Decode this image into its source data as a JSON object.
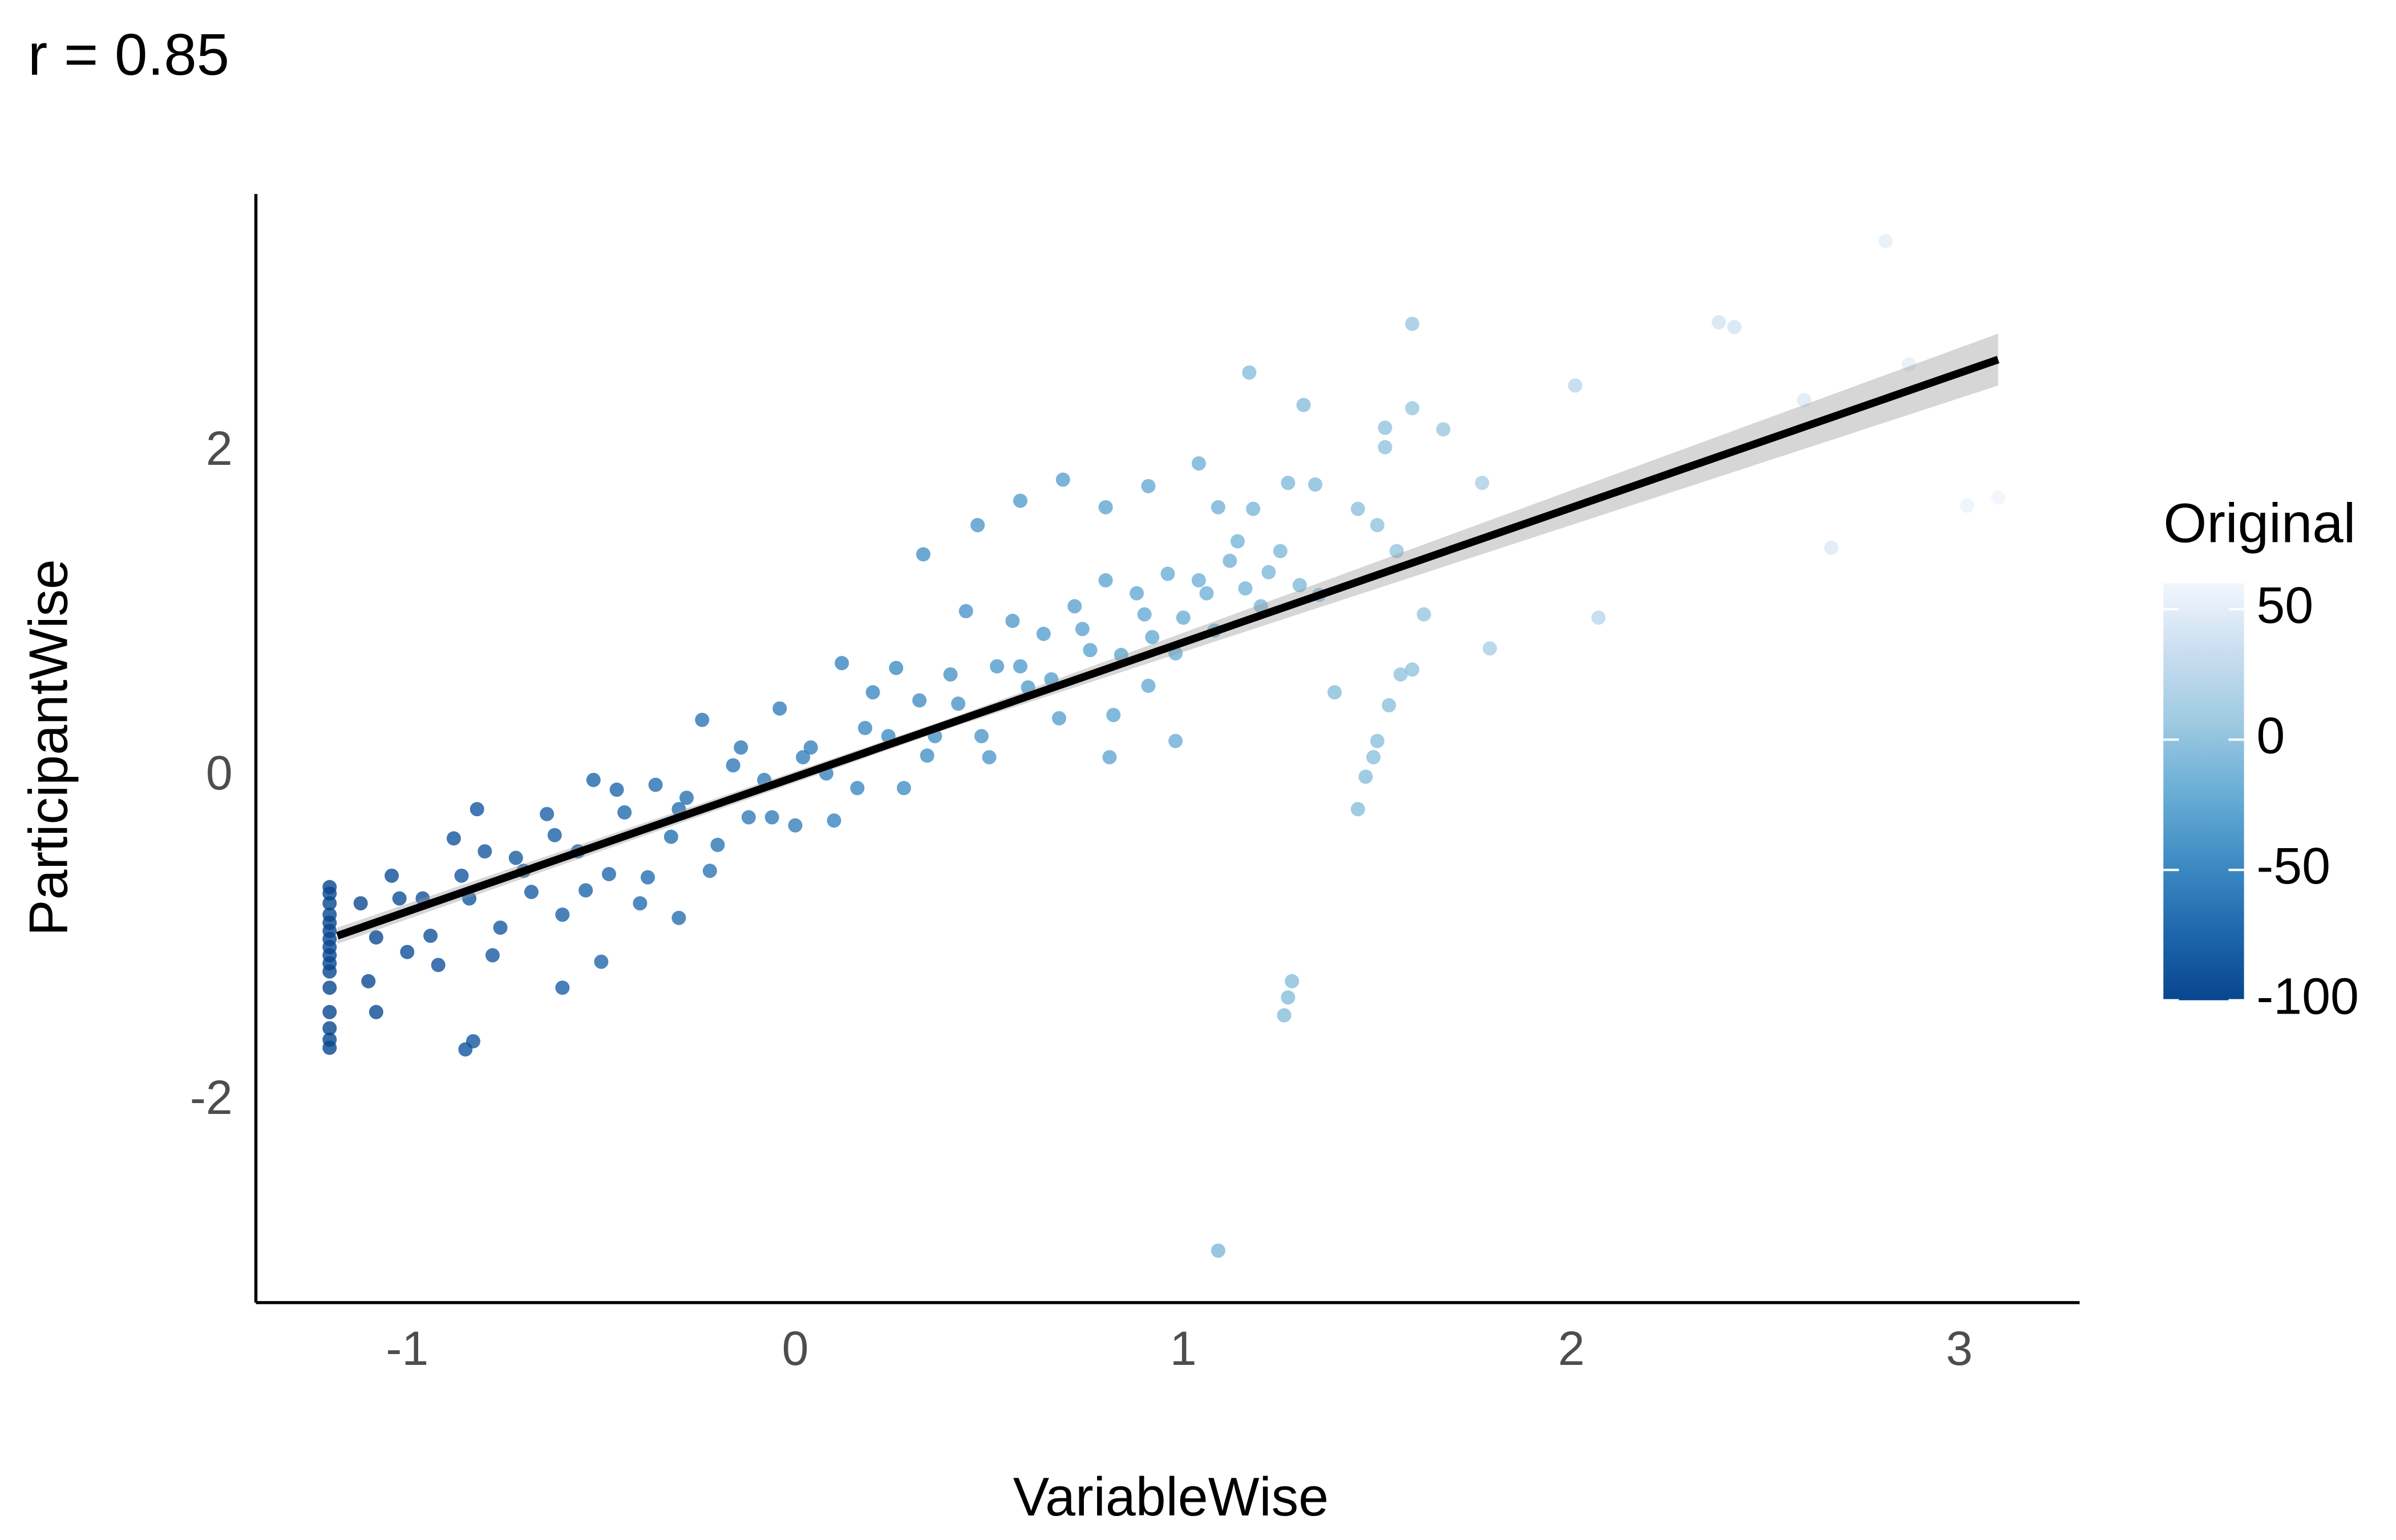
{
  "chart_data": {
    "type": "scatter",
    "title": "r = 0.85",
    "x_label": "VariableWise",
    "y_label": "ParticipantWise",
    "color_label": "Original",
    "xlim": [
      -1.39,
      3.31
    ],
    "ylim": [
      -3.24,
      3.59
    ],
    "xticks": [
      -1,
      0,
      1,
      2,
      3
    ],
    "yticks": [
      -2,
      0,
      2
    ],
    "colorlim": [
      -100,
      60
    ],
    "colorticks": [
      -100,
      -50,
      0,
      50
    ],
    "colors": [
      "#08468f",
      "#1f68ad",
      "#3f8cc4",
      "#6aaed6",
      "#9ecae1",
      "#c9ddf0",
      "#f2f7fd"
    ],
    "x": [
      -1.2,
      -1.2,
      -1.2,
      -1.2,
      -1.2,
      -1.2,
      -1.2,
      -1.2,
      -1.2,
      -1.2,
      -1.2,
      -1.2,
      -1.2,
      -1.2,
      -1.2,
      -1.2,
      -1.12,
      -1.08,
      -1.04,
      -1.0,
      -0.96,
      -0.92,
      -0.88,
      -0.84,
      -0.8,
      -0.76,
      -0.72,
      -0.68,
      -0.64,
      -0.6,
      -0.56,
      -0.52,
      -0.48,
      -0.44,
      -0.4,
      -0.36,
      -0.32,
      -0.28,
      -0.24,
      -0.2,
      -0.16,
      -0.12,
      -0.08,
      -0.04,
      0.0,
      0.04,
      0.08,
      0.12,
      0.16,
      0.2,
      0.24,
      0.28,
      0.32,
      0.36,
      0.4,
      0.44,
      0.48,
      0.52,
      0.56,
      0.6,
      0.64,
      0.68,
      0.72,
      0.76,
      0.8,
      0.84,
      0.88,
      0.92,
      0.96,
      1.0,
      1.04,
      1.08,
      1.12,
      1.16,
      1.2,
      1.25,
      1.3,
      1.35,
      1.45,
      1.5,
      1.55,
      1.62,
      -1.1,
      -1.02,
      -0.94,
      -0.86,
      -0.78,
      -0.7,
      -0.62,
      -0.54,
      -0.46,
      -0.38,
      -0.3,
      -0.22,
      -0.14,
      -0.06,
      0.02,
      0.1,
      0.18,
      0.26,
      0.34,
      0.42,
      0.5,
      0.58,
      0.66,
      0.74,
      0.82,
      0.9,
      0.98,
      1.06,
      1.14,
      1.22,
      1.09,
      1.28,
      1.27,
      1.26,
      2.81,
      2.38,
      2.42,
      2.6,
      2.87,
      3.02,
      3.1,
      2.67,
      2.07,
      2.01,
      1.79,
      1.77,
      1.59,
      1.17,
      1.31,
      1.52,
      1.67,
      1.59,
      1.45,
      1.47,
      1.49,
      1.5,
      1.53,
      1.56,
      1.59,
      1.39,
      0.98,
      0.91,
      0.81,
      0.69,
      0.58,
      0.47,
      0.33,
      1.04,
      0.91,
      0.8,
      1.27,
      1.34,
      1.09,
      1.18,
      1.52,
      -0.83,
      -0.85,
      -0.6,
      -0.5,
      -1.08,
      -0.3,
      -0.82
    ],
    "values": [
      -0.68,
      -0.72,
      -0.78,
      -0.85,
      -0.9,
      -0.95,
      -1.0,
      -1.05,
      -1.1,
      -1.15,
      -1.2,
      -1.3,
      -1.45,
      -1.55,
      -1.62,
      -1.67,
      -0.78,
      -0.99,
      -0.61,
      -1.08,
      -0.75,
      -1.16,
      -0.38,
      -0.75,
      -0.46,
      -0.93,
      -0.5,
      -0.71,
      -0.23,
      -0.85,
      -0.46,
      -0.02,
      -0.6,
      -0.22,
      -0.78,
      -0.05,
      -0.37,
      -0.13,
      0.35,
      -0.42,
      0.07,
      -0.25,
      -0.02,
      0.42,
      -0.3,
      0.18,
      0.02,
      0.7,
      -0.07,
      0.52,
      0.25,
      -0.07,
      0.47,
      0.25,
      0.63,
      1.02,
      0.25,
      0.68,
      0.96,
      0.55,
      0.88,
      0.36,
      1.05,
      0.78,
      1.21,
      0.75,
      1.13,
      0.86,
      1.25,
      0.98,
      1.21,
      0.9,
      1.33,
      1.16,
      1.05,
      1.39,
      1.18,
      1.12,
      1.65,
      1.55,
      1.39,
      1.0,
      -1.26,
      -0.75,
      -0.98,
      -0.61,
      -1.1,
      -0.58,
      -0.36,
      -0.7,
      -0.08,
      -0.62,
      -0.2,
      -0.58,
      0.18,
      -0.25,
      0.12,
      -0.27,
      0.3,
      0.67,
      0.13,
      0.45,
      0.12,
      0.68,
      0.6,
      0.91,
      0.38,
      1.0,
      0.76,
      1.13,
      1.45,
      1.26,
      -2.92,
      -1.26,
      -1.36,
      -1.47,
      3.3,
      2.8,
      2.77,
      2.32,
      2.54,
      1.67,
      1.72,
      1.41,
      0.98,
      2.41,
      0.79,
      1.81,
      2.79,
      2.49,
      2.29,
      2.15,
      2.14,
      2.27,
      -0.2,
      0.0,
      0.12,
      0.22,
      0.44,
      0.63,
      0.66,
      0.52,
      0.22,
      0.56,
      0.12,
      1.83,
      1.7,
      1.55,
      1.37,
      1.93,
      1.79,
      1.66,
      1.81,
      1.8,
      1.66,
      1.65,
      2.03,
      -1.63,
      -1.68,
      -1.3,
      -1.14,
      -1.45,
      -0.87,
      -0.2
    ],
    "color_values": [
      -100,
      -100,
      -100,
      -100,
      -100,
      -100,
      -100,
      -100,
      -100,
      -100,
      -100,
      -100,
      -100,
      -100,
      -100,
      -100,
      -97,
      -96,
      -94,
      -93,
      -91,
      -90,
      -88,
      -87,
      -85,
      -84,
      -82,
      -81,
      -79,
      -78,
      -76,
      -75,
      -73,
      -72,
      -70,
      -69,
      -67,
      -66,
      -64,
      -63,
      -61,
      -60,
      -58,
      -57,
      -56,
      -54,
      -53,
      -51,
      -50,
      -48,
      -47,
      -45,
      -44,
      -42,
      -41,
      -39,
      -38,
      -36,
      -35,
      -33,
      -32,
      -30,
      -29,
      -27,
      -26,
      -25,
      -23,
      -22,
      -20,
      -19,
      -17,
      -16,
      -14,
      -13,
      -11,
      -9,
      -8,
      -6,
      -2,
      0,
      2,
      4,
      -96,
      -93,
      -90,
      -87,
      -84,
      -82,
      -79,
      -76,
      -73,
      -70,
      -67,
      -64,
      -61,
      -58,
      -55,
      -52,
      -49,
      -46,
      -43,
      -40,
      -37,
      -34,
      -31,
      -28,
      -25,
      -22,
      -19,
      -16,
      -13,
      -10,
      -10,
      -5,
      -5,
      -5,
      50,
      40,
      40,
      45,
      50,
      55,
      58,
      45,
      25,
      25,
      15,
      15,
      5,
      -5,
      -5,
      0,
      5,
      5,
      -5,
      -5,
      -3,
      -3,
      -2,
      0,
      0,
      -5,
      -20,
      -22,
      -25,
      -30,
      -33,
      -37,
      -42,
      -17,
      -22,
      -26,
      -8,
      -6,
      -15,
      -12,
      0,
      -87,
      -88,
      -80,
      -75,
      -96,
      -67,
      -86
    ],
    "fit": {
      "x": [
        -1.18,
        0.4,
        3.1
      ],
      "y": [
        -0.98,
        0.33,
        2.57
      ],
      "lower": [
        -1.03,
        0.3,
        2.41
      ],
      "upper": [
        -0.93,
        0.36,
        2.73
      ]
    }
  }
}
